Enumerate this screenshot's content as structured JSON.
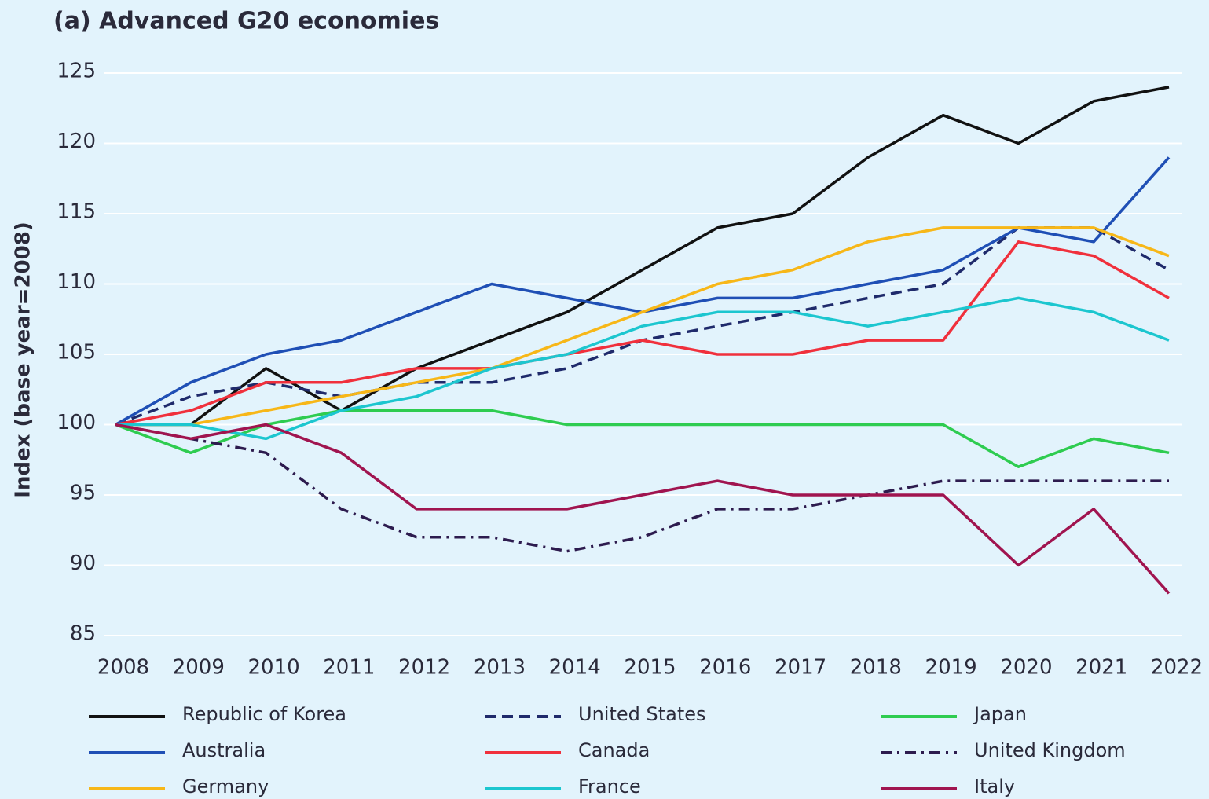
{
  "chart_data": {
    "type": "line",
    "title": "(a) Advanced G20 economies",
    "y_label": "Index (base year=2008)",
    "categories": [
      "2008",
      "2009",
      "2010",
      "2011",
      "2012",
      "2013",
      "2014",
      "2015",
      "2016",
      "2017",
      "2018",
      "2019",
      "2020",
      "2021",
      "2022"
    ],
    "ylim": [
      85,
      125
    ],
    "yticks": [
      85,
      90,
      95,
      100,
      105,
      110,
      115,
      120,
      125
    ],
    "grid": true,
    "series": [
      {
        "name": "Republic of Korea",
        "color": "#111111",
        "dash": "solid",
        "values": [
          100,
          100,
          104,
          101,
          104,
          106,
          108,
          111,
          114,
          115,
          119,
          122,
          120,
          123,
          124
        ]
      },
      {
        "name": "United States",
        "color": "#1f2a6b",
        "dash": "dashed",
        "values": [
          100,
          102,
          103,
          102,
          103,
          103,
          104,
          106,
          107,
          108,
          109,
          110,
          114,
          114,
          111
        ]
      },
      {
        "name": "Japan",
        "color": "#2ecc50",
        "dash": "solid",
        "values": [
          100,
          98,
          100,
          101,
          101,
          101,
          100,
          100,
          100,
          100,
          100,
          100,
          97,
          99,
          98
        ]
      },
      {
        "name": "Australia",
        "color": "#1f4fb5",
        "dash": "solid",
        "values": [
          100,
          103,
          105,
          106,
          108,
          110,
          109,
          108,
          109,
          109,
          110,
          111,
          114,
          113,
          119
        ]
      },
      {
        "name": "Canada",
        "color": "#f0303c",
        "dash": "solid",
        "values": [
          100,
          101,
          103,
          103,
          104,
          104,
          105,
          106,
          105,
          105,
          106,
          106,
          113,
          112,
          109
        ]
      },
      {
        "name": "United Kingdom",
        "color": "#2d1b4e",
        "dash": "dashdot",
        "values": [
          100,
          99,
          98,
          94,
          92,
          92,
          91,
          92,
          94,
          94,
          95,
          96,
          96,
          96,
          96
        ]
      },
      {
        "name": "Germany",
        "color": "#f7b718",
        "dash": "solid",
        "values": [
          100,
          100,
          101,
          102,
          103,
          104,
          106,
          108,
          110,
          111,
          113,
          114,
          114,
          114,
          112
        ]
      },
      {
        "name": "France",
        "color": "#1cc6cf",
        "dash": "solid",
        "values": [
          100,
          100,
          99,
          101,
          102,
          104,
          105,
          107,
          108,
          108,
          107,
          108,
          109,
          108,
          106
        ]
      },
      {
        "name": "Italy",
        "color": "#a0144f",
        "dash": "solid",
        "values": [
          100,
          99,
          100,
          98,
          94,
          94,
          94,
          95,
          96,
          95,
          95,
          95,
          90,
          94,
          88
        ]
      }
    ]
  }
}
